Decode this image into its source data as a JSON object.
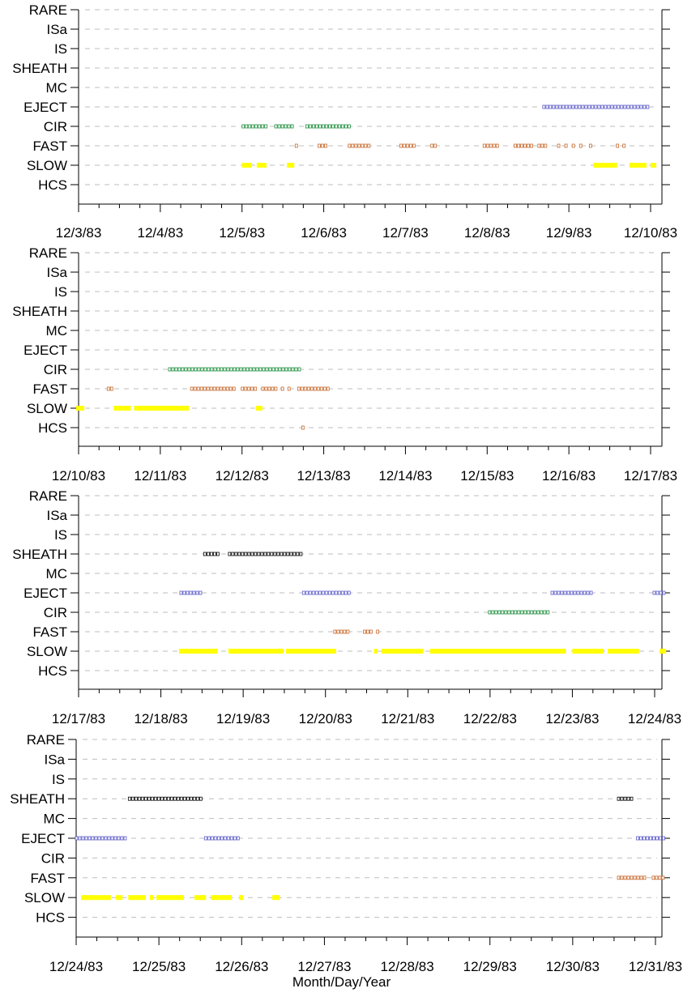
{
  "chart_data": [
    {
      "type": "timeline",
      "categories": [
        "RARE",
        "ISa",
        "IS",
        "SHEATH",
        "MC",
        "EJECT",
        "CIR",
        "FAST",
        "SLOW",
        "HCS"
      ],
      "x_ticks": [
        "12/3/83",
        "12/4/83",
        "12/5/83",
        "12/6/83",
        "12/7/83",
        "12/8/83",
        "12/9/83",
        "12/10/83"
      ],
      "xlim": [
        "12/3/83",
        "12/10/83"
      ],
      "grid": true,
      "segments": [
        {
          "category": "CIR",
          "start": 2.0,
          "end": 2.3
        },
        {
          "category": "CIR",
          "start": 2.4,
          "end": 2.65
        },
        {
          "category": "CIR",
          "start": 2.78,
          "end": 3.33
        },
        {
          "category": "EJECT",
          "start": 5.68,
          "end": 6.99
        },
        {
          "category": "FAST",
          "start": 2.65,
          "end": 2.69
        },
        {
          "category": "FAST",
          "start": 2.93,
          "end": 3.04
        },
        {
          "category": "FAST",
          "start": 3.3,
          "end": 3.59
        },
        {
          "category": "FAST",
          "start": 3.93,
          "end": 4.14
        },
        {
          "category": "FAST",
          "start": 4.31,
          "end": 4.38
        },
        {
          "category": "FAST",
          "start": 4.95,
          "end": 5.14
        },
        {
          "category": "FAST",
          "start": 5.33,
          "end": 5.56
        },
        {
          "category": "FAST",
          "start": 5.62,
          "end": 5.73
        },
        {
          "category": "FAST",
          "start": 5.86,
          "end": 5.9
        },
        {
          "category": "FAST",
          "start": 5.95,
          "end": 5.99
        },
        {
          "category": "FAST",
          "start": 6.04,
          "end": 6.08
        },
        {
          "category": "FAST",
          "start": 6.13,
          "end": 6.17
        },
        {
          "category": "FAST",
          "start": 6.25,
          "end": 6.29
        },
        {
          "category": "FAST",
          "start": 6.58,
          "end": 6.62
        },
        {
          "category": "FAST",
          "start": 6.66,
          "end": 6.7
        },
        {
          "category": "SLOW",
          "start": 2.0,
          "end": 2.12
        },
        {
          "category": "SLOW",
          "start": 2.18,
          "end": 2.3
        },
        {
          "category": "SLOW",
          "start": 2.55,
          "end": 2.64
        },
        {
          "category": "SLOW",
          "start": 6.3,
          "end": 6.59
        },
        {
          "category": "SLOW",
          "start": 6.74,
          "end": 6.95
        },
        {
          "category": "SLOW",
          "start": 7.0,
          "end": 7.07
        }
      ]
    },
    {
      "type": "timeline",
      "categories": [
        "RARE",
        "ISa",
        "IS",
        "SHEATH",
        "MC",
        "EJECT",
        "CIR",
        "FAST",
        "SLOW",
        "HCS"
      ],
      "x_ticks": [
        "12/10/83",
        "12/11/83",
        "12/12/83",
        "12/13/83",
        "12/14/83",
        "12/15/83",
        "12/16/83",
        "12/17/83"
      ],
      "xlim": [
        "12/10/83",
        "12/17/83"
      ],
      "grid": true,
      "segments": [
        {
          "category": "CIR",
          "start": 1.1,
          "end": 2.72
        },
        {
          "category": "FAST",
          "start": 0.35,
          "end": 0.43
        },
        {
          "category": "FAST",
          "start": 1.37,
          "end": 1.94
        },
        {
          "category": "FAST",
          "start": 1.99,
          "end": 2.2
        },
        {
          "category": "FAST",
          "start": 2.24,
          "end": 2.44
        },
        {
          "category": "FAST",
          "start": 2.48,
          "end": 2.52
        },
        {
          "category": "FAST",
          "start": 2.56,
          "end": 2.6
        },
        {
          "category": "FAST",
          "start": 2.68,
          "end": 3.09
        },
        {
          "category": "SLOW",
          "start": -0.03,
          "end": 0.07
        },
        {
          "category": "SLOW",
          "start": 0.43,
          "end": 0.64
        },
        {
          "category": "SLOW",
          "start": 0.68,
          "end": 1.35
        },
        {
          "category": "SLOW",
          "start": 2.17,
          "end": 2.25
        },
        {
          "category": "HCS",
          "start": 2.73,
          "end": 2.78
        }
      ]
    },
    {
      "type": "timeline",
      "categories": [
        "RARE",
        "ISa",
        "IS",
        "SHEATH",
        "MC",
        "EJECT",
        "CIR",
        "FAST",
        "SLOW",
        "HCS"
      ],
      "x_ticks": [
        "12/17/83",
        "12/18/83",
        "12/19/83",
        "12/20/83",
        "12/21/83",
        "12/22/83",
        "12/23/83",
        "12/24/83"
      ],
      "xlim": [
        "12/17/83",
        "12/24/83"
      ],
      "grid": true,
      "segments": [
        {
          "category": "SHEATH",
          "start": 1.52,
          "end": 1.7
        },
        {
          "category": "SHEATH",
          "start": 1.82,
          "end": 2.72
        },
        {
          "category": "EJECT",
          "start": 1.23,
          "end": 1.52
        },
        {
          "category": "EJECT",
          "start": 2.72,
          "end": 3.3
        },
        {
          "category": "EJECT",
          "start": 5.74,
          "end": 6.27
        },
        {
          "category": "EJECT",
          "start": 6.98,
          "end": 7.14
        },
        {
          "category": "CIR",
          "start": 4.98,
          "end": 5.74
        },
        {
          "category": "FAST",
          "start": 3.1,
          "end": 3.28
        },
        {
          "category": "FAST",
          "start": 3.46,
          "end": 3.58
        },
        {
          "category": "FAST",
          "start": 3.62,
          "end": 3.66
        },
        {
          "category": "SLOW",
          "start": 1.22,
          "end": 1.69
        },
        {
          "category": "SLOW",
          "start": 1.82,
          "end": 2.49
        },
        {
          "category": "SLOW",
          "start": 2.52,
          "end": 3.13
        },
        {
          "category": "SLOW",
          "start": 3.59,
          "end": 3.63
        },
        {
          "category": "SLOW",
          "start": 3.68,
          "end": 4.19
        },
        {
          "category": "SLOW",
          "start": 4.27,
          "end": 5.92
        },
        {
          "category": "SLOW",
          "start": 6.0,
          "end": 6.38
        },
        {
          "category": "SLOW",
          "start": 6.43,
          "end": 6.81
        },
        {
          "category": "SLOW",
          "start": 7.06,
          "end": 7.14
        }
      ]
    },
    {
      "type": "timeline",
      "categories": [
        "RARE",
        "ISa",
        "IS",
        "SHEATH",
        "MC",
        "EJECT",
        "CIR",
        "FAST",
        "SLOW",
        "HCS"
      ],
      "x_ticks": [
        "12/24/83",
        "12/25/83",
        "12/26/83",
        "12/27/83",
        "12/28/83",
        "12/29/83",
        "12/30/83",
        "12/31/83"
      ],
      "xlim": [
        "12/24/83",
        "12/31/83"
      ],
      "xlabel": "Month/Day/Year",
      "grid": true,
      "segments": [
        {
          "category": "SHEATH",
          "start": 0.63,
          "end": 1.55
        },
        {
          "category": "SHEATH",
          "start": 6.54,
          "end": 6.73
        },
        {
          "category": "EJECT",
          "start": -0.01,
          "end": 0.63
        },
        {
          "category": "EJECT",
          "start": 1.55,
          "end": 2.0
        },
        {
          "category": "EJECT",
          "start": 6.77,
          "end": 7.13
        },
        {
          "category": "FAST",
          "start": 6.54,
          "end": 6.88
        },
        {
          "category": "FAST",
          "start": 6.96,
          "end": 7.13
        },
        {
          "category": "SLOW",
          "start": 0.06,
          "end": 0.42
        },
        {
          "category": "SLOW",
          "start": 0.48,
          "end": 0.56
        },
        {
          "category": "SLOW",
          "start": 0.63,
          "end": 0.84
        },
        {
          "category": "SLOW",
          "start": 0.89,
          "end": 0.93
        },
        {
          "category": "SLOW",
          "start": 0.97,
          "end": 1.3
        },
        {
          "category": "SLOW",
          "start": 1.43,
          "end": 1.57
        },
        {
          "category": "SLOW",
          "start": 1.63,
          "end": 1.88
        },
        {
          "category": "SLOW",
          "start": 1.97,
          "end": 2.02
        },
        {
          "category": "SLOW",
          "start": 2.37,
          "end": 2.46
        }
      ]
    }
  ],
  "series_colors": {
    "SHEATH": "#000000",
    "EJECT": "#5a5ac8",
    "CIR": "#1f8f3f",
    "FAST": "#c8682a",
    "SLOW": "#ffff00",
    "HCS": "#c8682a"
  },
  "axis_title": "Month/Day/Year"
}
